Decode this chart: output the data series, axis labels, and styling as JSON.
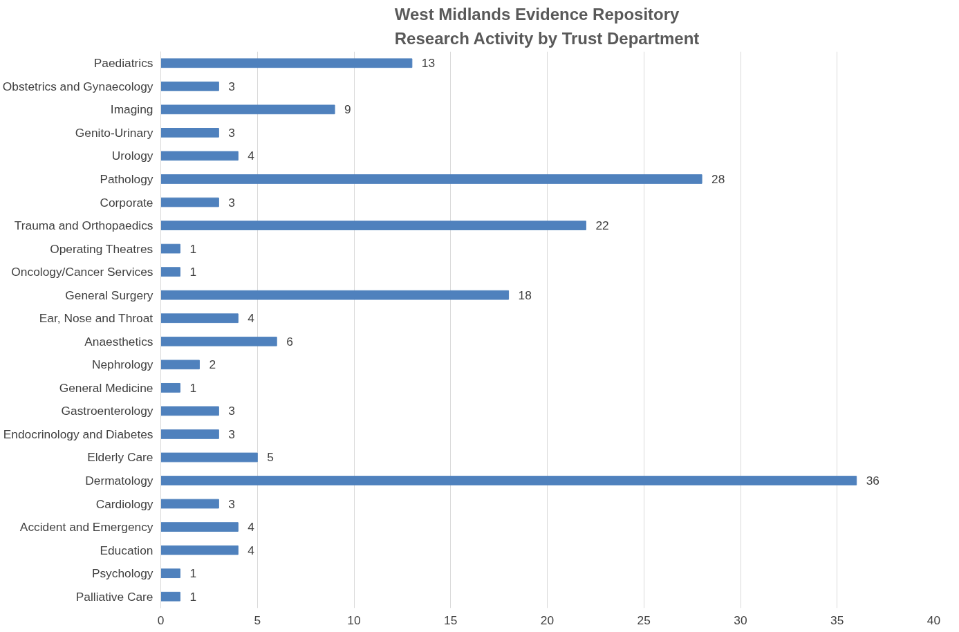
{
  "chart_data": {
    "type": "bar",
    "orientation": "horizontal",
    "title": "West Midlands Evidence Repository\nResearch Activity by Trust Department",
    "categories": [
      "Paediatrics",
      "Obstetrics and Gynaecology",
      "Imaging",
      "Genito-Urinary",
      "Urology",
      "Pathology",
      "Corporate",
      "Trauma and Orthopaedics",
      "Operating Theatres",
      "Oncology/Cancer Services",
      "General Surgery",
      "Ear, Nose and Throat",
      "Anaesthetics",
      "Nephrology",
      "General Medicine",
      "Gastroenterology",
      "Endocrinology and Diabetes",
      "Elderly Care",
      "Dermatology",
      "Cardiology",
      "Accident and Emergency",
      "Education",
      "Psychology",
      "Palliative Care"
    ],
    "values": [
      13,
      3,
      9,
      3,
      4,
      28,
      3,
      22,
      1,
      1,
      18,
      4,
      6,
      2,
      1,
      3,
      3,
      5,
      36,
      3,
      4,
      4,
      1,
      1
    ],
    "color": "#4f81bd",
    "xlim": [
      0,
      40
    ],
    "xticks": [
      0,
      5,
      10,
      15,
      20,
      25,
      30,
      35,
      40
    ],
    "grid": "x",
    "data_labels": true
  }
}
